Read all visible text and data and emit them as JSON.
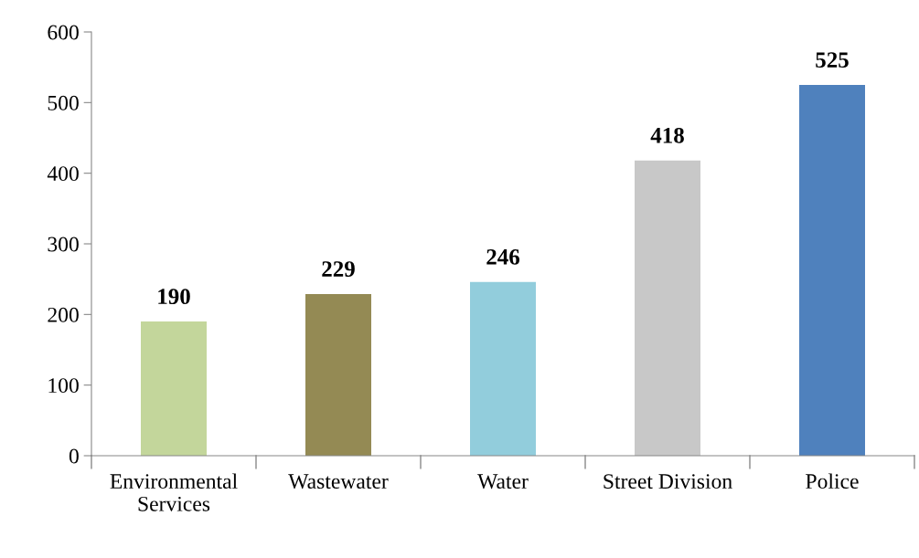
{
  "chart_data": {
    "type": "bar",
    "categories": [
      "Environmental\nServices",
      "Wastewater",
      "Water",
      "Street Division",
      "Police"
    ],
    "values": [
      190,
      229,
      246,
      418,
      525
    ],
    "colors": [
      "#c3d69b",
      "#948a54",
      "#92cddc",
      "#c8c8c8",
      "#4f81bd"
    ],
    "ylim": [
      0,
      600
    ],
    "yticks": [
      0,
      100,
      200,
      300,
      400,
      500,
      600
    ],
    "grid": false,
    "data_labels": true
  }
}
